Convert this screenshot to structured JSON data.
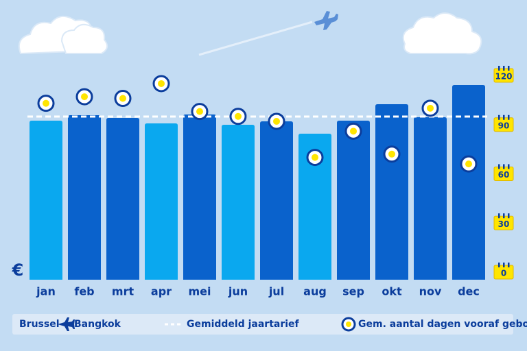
{
  "chart_data": {
    "type": "bar",
    "currency_label": "€",
    "categories": [
      "jan",
      "feb",
      "mrt",
      "apr",
      "mei",
      "jun",
      "jul",
      "aug",
      "sep",
      "okt",
      "nov",
      "dec"
    ],
    "values": [
      232,
      240,
      236,
      228,
      241,
      226,
      231,
      213,
      232,
      256,
      237,
      284
    ],
    "colors": [
      "#0aa8ef",
      "#0a62cc",
      "#0a62cc",
      "#0aa8ef",
      "#0a62cc",
      "#0aa8ef",
      "#0a62cc",
      "#0aa8ef",
      "#0a62cc",
      "#0a62cc",
      "#0a62cc",
      "#0a62cc"
    ],
    "ylim": [
      0,
      300
    ],
    "route": [
      "Brussel",
      "Bangkok"
    ],
    "average": {
      "name": "Gemiddeld jaartarief",
      "value": 238
    },
    "series": [
      {
        "name": "Gem. aantal dagen vooraf geboekt",
        "axis": "y2",
        "color": "#ffe500",
        "values": [
          103,
          107,
          106,
          115,
          98,
          95,
          92,
          70,
          86,
          72,
          100,
          66
        ]
      }
    ],
    "y2lim": [
      0,
      120
    ],
    "y2ticks": [
      0,
      30,
      60,
      90,
      120
    ]
  }
}
